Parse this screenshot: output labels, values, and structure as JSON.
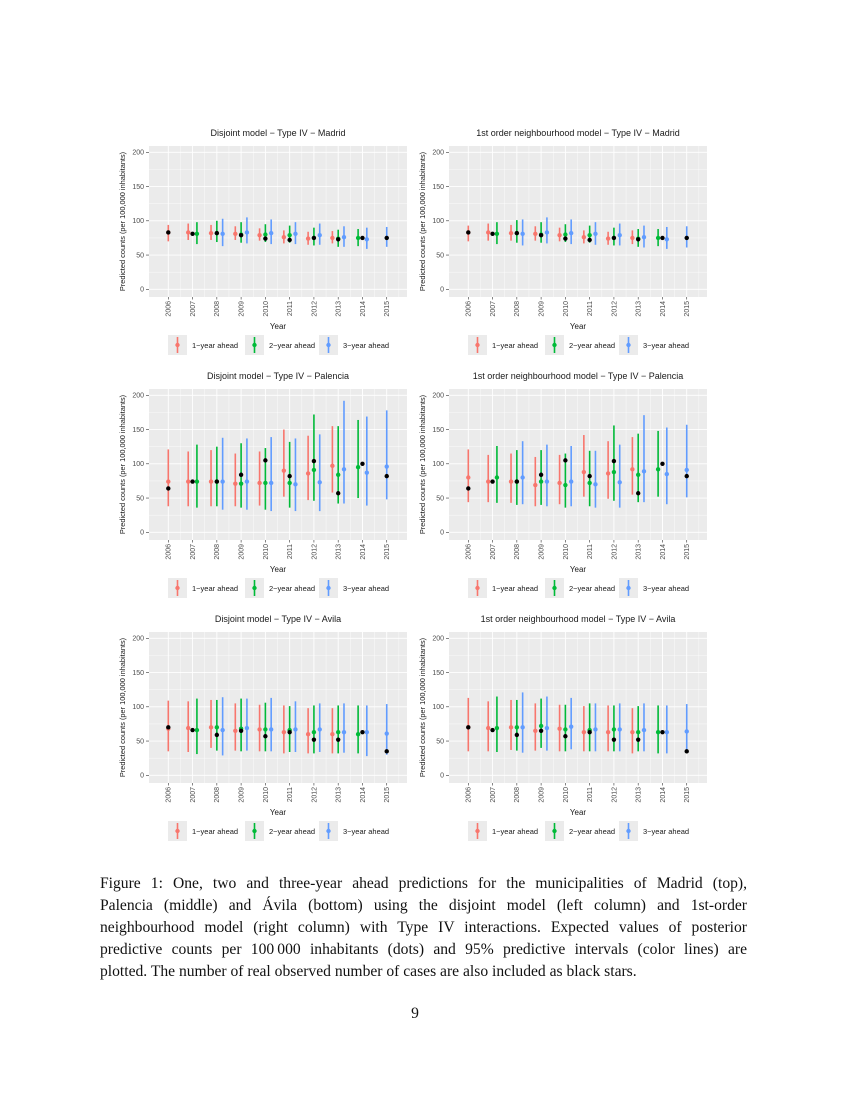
{
  "legend": {
    "entries": [
      "1−year ahead",
      "2−year ahead",
      "3−year ahead"
    ],
    "colors": [
      "#F8766D",
      "#00BA38",
      "#619CFF"
    ],
    "observed_color": "#000000"
  },
  "chart_data": [
    {
      "type": "errorbar",
      "title": "Disjoint model − Type IV − Madrid",
      "xlabel": "Year",
      "ylabel": "Predicted counts (per 100,000 inhabitants)",
      "ylim": [
        0,
        200
      ],
      "yticks": [
        0,
        50,
        100,
        150,
        200
      ],
      "xticks": [
        2006,
        2007,
        2008,
        2009,
        2010,
        2011,
        2012,
        2013,
        2014,
        2015
      ],
      "grid": true,
      "legend_position": "bottom",
      "observed": {
        "year": [
          2006,
          2007,
          2008,
          2009,
          2010,
          2011,
          2012,
          2013,
          2014,
          2015
        ],
        "value": [
          83,
          81,
          82,
          79,
          74,
          72,
          75,
          73,
          75,
          75
        ]
      },
      "series": [
        {
          "name": "1−year ahead",
          "year": [
            2006,
            2007,
            2008,
            2009,
            2010,
            2011,
            2012,
            2013
          ],
          "mean": [
            83,
            83,
            82,
            81,
            79,
            76,
            74,
            75
          ],
          "lower": [
            70,
            72,
            72,
            72,
            71,
            67,
            65,
            67
          ],
          "upper": [
            94,
            96,
            94,
            92,
            89,
            86,
            84,
            85
          ]
        },
        {
          "name": "2−year ahead",
          "year": [
            2007,
            2008,
            2009,
            2010,
            2011,
            2012,
            2013,
            2014
          ],
          "mean": [
            81,
            82,
            80,
            80,
            79,
            75,
            74,
            75
          ],
          "lower": [
            66,
            69,
            68,
            69,
            68,
            64,
            62,
            63
          ],
          "upper": [
            98,
            100,
            98,
            95,
            93,
            90,
            87,
            88
          ]
        },
        {
          "name": "3−year ahead",
          "year": [
            2008,
            2009,
            2010,
            2011,
            2012,
            2013,
            2014,
            2015
          ],
          "mean": [
            81,
            83,
            82,
            81,
            79,
            76,
            73,
            75
          ],
          "lower": [
            63,
            67,
            66,
            66,
            65,
            62,
            59,
            62
          ],
          "upper": [
            103,
            105,
            102,
            98,
            96,
            92,
            90,
            91
          ]
        }
      ]
    },
    {
      "type": "errorbar",
      "title": "1st order neighbourhood model − Type IV − Madrid",
      "xlabel": "Year",
      "ylabel": "Predicted counts (per 100,000 inhabitants)",
      "ylim": [
        0,
        200
      ],
      "yticks": [
        0,
        50,
        100,
        150,
        200
      ],
      "xticks": [
        2006,
        2007,
        2008,
        2009,
        2010,
        2011,
        2012,
        2013,
        2014,
        2015
      ],
      "grid": true,
      "legend_position": "bottom",
      "observed": {
        "year": [
          2006,
          2007,
          2008,
          2009,
          2010,
          2011,
          2012,
          2013,
          2014,
          2015
        ],
        "value": [
          83,
          81,
          82,
          79,
          74,
          72,
          75,
          73,
          75,
          75
        ]
      },
      "series": [
        {
          "name": "1−year ahead",
          "year": [
            2006,
            2007,
            2008,
            2009,
            2010,
            2011,
            2012,
            2013
          ],
          "mean": [
            83,
            83,
            82,
            81,
            79,
            76,
            74,
            75
          ],
          "lower": [
            70,
            71,
            71,
            71,
            70,
            67,
            65,
            66
          ],
          "upper": [
            93,
            96,
            94,
            92,
            90,
            86,
            84,
            86
          ]
        },
        {
          "name": "2−year ahead",
          "year": [
            2007,
            2008,
            2009,
            2010,
            2011,
            2012,
            2013,
            2014
          ],
          "mean": [
            81,
            82,
            80,
            80,
            79,
            75,
            74,
            75
          ],
          "lower": [
            66,
            68,
            68,
            69,
            68,
            64,
            62,
            63
          ],
          "upper": [
            98,
            101,
            98,
            95,
            93,
            90,
            88,
            88
          ]
        },
        {
          "name": "3−year ahead",
          "year": [
            2008,
            2009,
            2010,
            2011,
            2012,
            2013,
            2014,
            2015
          ],
          "mean": [
            81,
            83,
            82,
            81,
            79,
            76,
            73,
            75
          ],
          "lower": [
            64,
            67,
            66,
            65,
            64,
            61,
            59,
            61
          ],
          "upper": [
            102,
            105,
            102,
            98,
            96,
            93,
            91,
            92
          ]
        }
      ]
    },
    {
      "type": "errorbar",
      "title": "Disjoint model − Type IV − Palencia",
      "xlabel": "Year",
      "ylabel": "Predicted counts (per 100,000 inhabitants)",
      "ylim": [
        0,
        200
      ],
      "yticks": [
        0,
        50,
        100,
        150,
        200
      ],
      "xticks": [
        2006,
        2007,
        2008,
        2009,
        2010,
        2011,
        2012,
        2013,
        2014,
        2015
      ],
      "grid": true,
      "legend_position": "bottom",
      "observed": {
        "year": [
          2006,
          2007,
          2008,
          2009,
          2010,
          2011,
          2012,
          2013,
          2014,
          2015
        ],
        "value": [
          64,
          74,
          74,
          84,
          105,
          82,
          104,
          57,
          100,
          82
        ]
      },
      "series": [
        {
          "name": "1−year ahead",
          "year": [
            2006,
            2007,
            2008,
            2009,
            2010,
            2011,
            2012,
            2013
          ],
          "mean": [
            74,
            74,
            74,
            71,
            72,
            90,
            86,
            97
          ],
          "lower": [
            38,
            38,
            38,
            38,
            39,
            52,
            47,
            58
          ],
          "upper": [
            121,
            118,
            120,
            115,
            118,
            150,
            141,
            155
          ]
        },
        {
          "name": "2−year ahead",
          "year": [
            2007,
            2008,
            2009,
            2010,
            2011,
            2012,
            2013,
            2014
          ],
          "mean": [
            74,
            74,
            71,
            72,
            72,
            91,
            84,
            95
          ],
          "lower": [
            36,
            38,
            36,
            33,
            36,
            46,
            42,
            50
          ],
          "upper": [
            128,
            125,
            130,
            123,
            132,
            172,
            155,
            164
          ]
        },
        {
          "name": "3−year ahead",
          "year": [
            2008,
            2009,
            2010,
            2011,
            2012,
            2013,
            2014,
            2015
          ],
          "mean": [
            74,
            74,
            72,
            70,
            73,
            92,
            87,
            96
          ],
          "lower": [
            33,
            33,
            31,
            31,
            31,
            42,
            39,
            48
          ],
          "upper": [
            138,
            137,
            139,
            137,
            143,
            192,
            169,
            178
          ]
        }
      ]
    },
    {
      "type": "errorbar",
      "title": "1st order neighbourhood model − Type IV − Palencia",
      "xlabel": "Year",
      "ylabel": "Predicted counts (per 100,000 inhabitants)",
      "ylim": [
        0,
        200
      ],
      "yticks": [
        0,
        50,
        100,
        150,
        200
      ],
      "xticks": [
        2006,
        2007,
        2008,
        2009,
        2010,
        2011,
        2012,
        2013,
        2014,
        2015
      ],
      "grid": true,
      "legend_position": "bottom",
      "observed": {
        "year": [
          2006,
          2007,
          2008,
          2009,
          2010,
          2011,
          2012,
          2013,
          2014,
          2015
        ],
        "value": [
          64,
          74,
          74,
          84,
          105,
          82,
          104,
          57,
          100,
          82
        ]
      },
      "series": [
        {
          "name": "1−year ahead",
          "year": [
            2006,
            2007,
            2008,
            2009,
            2010,
            2011,
            2012,
            2013
          ],
          "mean": [
            80,
            74,
            74,
            69,
            72,
            88,
            86,
            92
          ],
          "lower": [
            44,
            44,
            43,
            38,
            41,
            52,
            49,
            55
          ],
          "upper": [
            121,
            113,
            115,
            110,
            113,
            142,
            133,
            139
          ]
        },
        {
          "name": "2−year ahead",
          "year": [
            2007,
            2008,
            2009,
            2010,
            2011,
            2012,
            2013,
            2014
          ],
          "mean": [
            80,
            74,
            74,
            69,
            72,
            88,
            84,
            92
          ],
          "lower": [
            43,
            40,
            40,
            36,
            38,
            46,
            44,
            52
          ],
          "upper": [
            126,
            120,
            120,
            115,
            119,
            156,
            144,
            148
          ]
        },
        {
          "name": "3−year ahead",
          "year": [
            2008,
            2009,
            2010,
            2011,
            2012,
            2013,
            2014,
            2015
          ],
          "mean": [
            80,
            74,
            74,
            70,
            73,
            89,
            85,
            91
          ],
          "lower": [
            41,
            38,
            38,
            36,
            36,
            44,
            41,
            51
          ],
          "upper": [
            133,
            128,
            126,
            119,
            128,
            171,
            153,
            157
          ]
        }
      ]
    },
    {
      "type": "errorbar",
      "title": "Disjoint model − Type IV − Avila",
      "xlabel": "Year",
      "ylabel": "Predicted counts (per 100,000 inhabitants)",
      "ylim": [
        0,
        200
      ],
      "yticks": [
        0,
        50,
        100,
        150,
        200
      ],
      "xticks": [
        2006,
        2007,
        2008,
        2009,
        2010,
        2011,
        2012,
        2013,
        2014,
        2015
      ],
      "grid": true,
      "legend_position": "bottom",
      "observed": {
        "year": [
          2006,
          2007,
          2008,
          2009,
          2010,
          2011,
          2012,
          2013,
          2014,
          2015
        ],
        "value": [
          70,
          66,
          59,
          65,
          57,
          63,
          52,
          52,
          63,
          35
        ]
      },
      "series": [
        {
          "name": "1−year ahead",
          "year": [
            2006,
            2007,
            2008,
            2009,
            2010,
            2011,
            2012,
            2013
          ],
          "mean": [
            68,
            69,
            70,
            65,
            67,
            63,
            60,
            60
          ],
          "lower": [
            35,
            34,
            40,
            36,
            35,
            32,
            32,
            32
          ],
          "upper": [
            109,
            108,
            110,
            105,
            103,
            102,
            98,
            98
          ]
        },
        {
          "name": "2−year ahead",
          "year": [
            2007,
            2008,
            2009,
            2010,
            2011,
            2012,
            2013,
            2014
          ],
          "mean": [
            66,
            70,
            68,
            67,
            66,
            63,
            63,
            60
          ],
          "lower": [
            31,
            36,
            35,
            35,
            34,
            32,
            32,
            32
          ],
          "upper": [
            112,
            110,
            112,
            106,
            101,
            102,
            102,
            102
          ]
        },
        {
          "name": "3−year ahead",
          "year": [
            2008,
            2009,
            2010,
            2011,
            2012,
            2013,
            2014,
            2015
          ],
          "mean": [
            66,
            69,
            67,
            67,
            67,
            63,
            63,
            61
          ],
          "lower": [
            29,
            36,
            35,
            34,
            34,
            33,
            28,
            30
          ],
          "upper": [
            114,
            112,
            113,
            108,
            105,
            105,
            102,
            104
          ]
        }
      ]
    },
    {
      "type": "errorbar",
      "title": "1st order neighbourhood model − Type IV − Avila",
      "xlabel": "Year",
      "ylabel": "Predicted counts (per 100,000 inhabitants)",
      "ylim": [
        0,
        200
      ],
      "yticks": [
        0,
        50,
        100,
        150,
        200
      ],
      "xticks": [
        2006,
        2007,
        2008,
        2009,
        2010,
        2011,
        2012,
        2013,
        2014,
        2015
      ],
      "grid": true,
      "legend_position": "bottom",
      "observed": {
        "year": [
          2006,
          2007,
          2008,
          2009,
          2010,
          2011,
          2012,
          2013,
          2014,
          2015
        ],
        "value": [
          70,
          66,
          59,
          65,
          57,
          63,
          52,
          52,
          63,
          35
        ]
      },
      "series": [
        {
          "name": "1−year ahead",
          "year": [
            2006,
            2007,
            2008,
            2009,
            2010,
            2011,
            2012,
            2013
          ],
          "mean": [
            70,
            69,
            70,
            65,
            68,
            63,
            63,
            63
          ],
          "lower": [
            35,
            35,
            37,
            36,
            35,
            35,
            35,
            32
          ],
          "upper": [
            113,
            108,
            110,
            105,
            103,
            101,
            102,
            98
          ]
        },
        {
          "name": "2−year ahead",
          "year": [
            2007,
            2008,
            2009,
            2010,
            2011,
            2012,
            2013,
            2014
          ],
          "mean": [
            69,
            70,
            72,
            67,
            66,
            67,
            63,
            63
          ],
          "lower": [
            34,
            36,
            40,
            35,
            35,
            35,
            35,
            32
          ],
          "upper": [
            115,
            110,
            112,
            103,
            105,
            102,
            101,
            102
          ]
        },
        {
          "name": "3−year ahead",
          "year": [
            2008,
            2009,
            2010,
            2011,
            2012,
            2013,
            2014,
            2015
          ],
          "mean": [
            70,
            69,
            71,
            67,
            67,
            66,
            63,
            64
          ],
          "lower": [
            33,
            36,
            38,
            35,
            35,
            35,
            32,
            35
          ],
          "upper": [
            121,
            115,
            113,
            105,
            105,
            105,
            102,
            104
          ]
        }
      ]
    }
  ],
  "caption": {
    "lines": [
      "Figure 1: One, two and three-year ahead predictions for the municipalities of Madrid (top),",
      "Palencia (middle) and Ávila (bottom) using the disjoint model (left column) and 1st-order",
      "neighbourhood model (right column) with Type IV interactions. Expected values of posterior",
      "predictive counts per 100 000 inhabitants (dots) and 95% predictive intervals (color lines) are",
      "plotted. The number of real observed number of cases are also included as black stars."
    ]
  },
  "page_number": "9"
}
